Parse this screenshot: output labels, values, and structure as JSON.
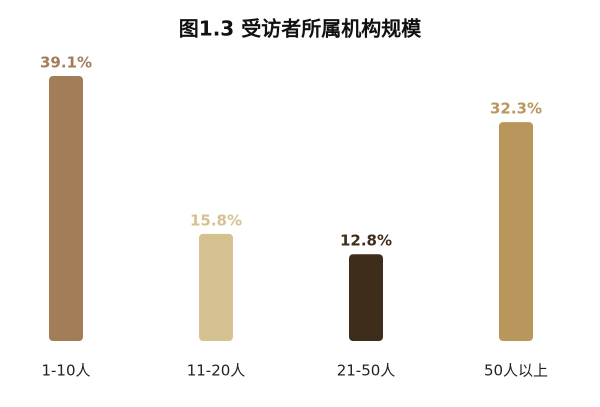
{
  "chart_data": {
    "type": "bar",
    "title": "图1.3  受访者所属机构规模",
    "categories": [
      "1-10人",
      "11-20人",
      "21-50人",
      "50人以上"
    ],
    "values": [
      39.1,
      15.8,
      12.8,
      32.3
    ],
    "value_labels": [
      "39.1%",
      "15.8%",
      "12.8%",
      "32.3%"
    ],
    "colors": [
      "#a27d57",
      "#d6c291",
      "#3f2d1b",
      "#b9965b"
    ]
  }
}
